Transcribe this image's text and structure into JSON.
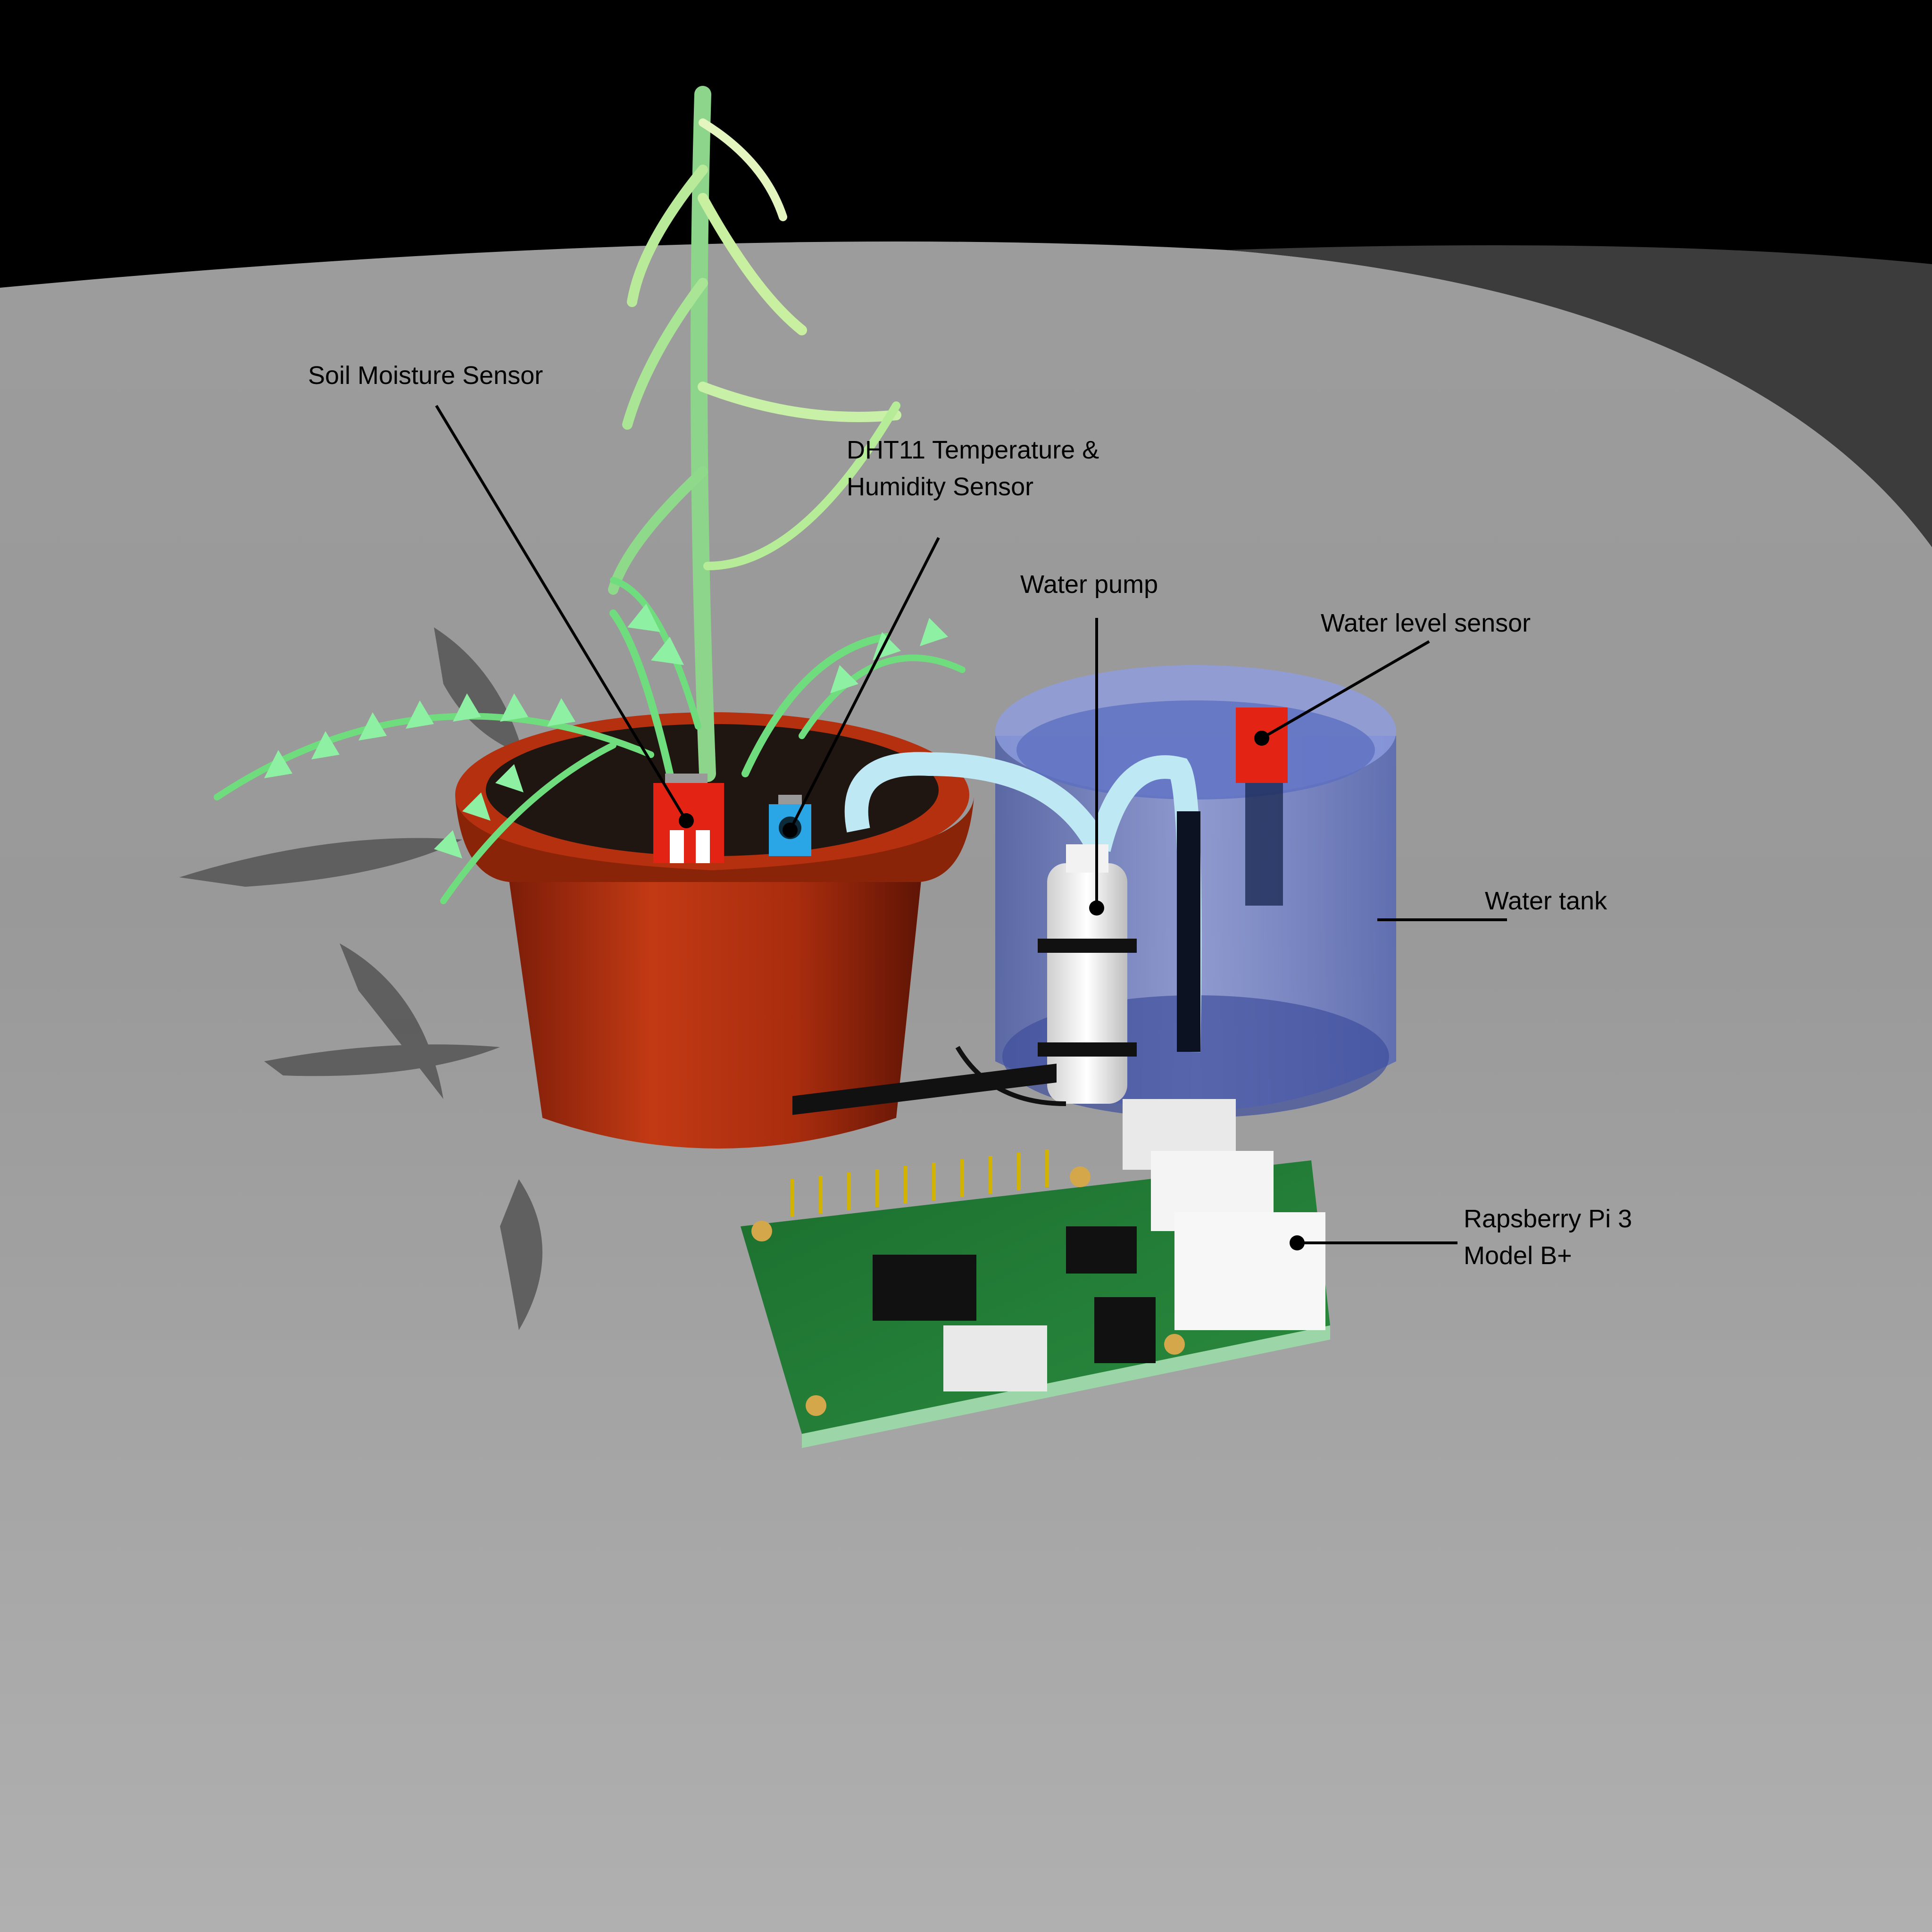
{
  "labels": {
    "soil_moisture": "Soil Moisture Sensor",
    "dht11_line1": "DHT11 Temperature &",
    "dht11_line2": "Humidity Sensor",
    "water_pump": "Water pump",
    "water_level": "Water level sensor",
    "water_tank": "Water tank",
    "raspberry_line1": "Rapsberry Pi 3",
    "raspberry_line2": "Model B+"
  },
  "colors": {
    "background_top": "#000000",
    "floor_light": "#aaaaaa",
    "floor_dark": "#3c3c3c",
    "pot": "#b5300f",
    "soil": "#1f1612",
    "tank": "#7f8fd6",
    "hose": "#bfe8f5",
    "pcb": "#1f7a33",
    "sensor_red": "#e32414",
    "sensor_blue": "#2aa6e6",
    "leaf": "#6fdc7d"
  }
}
